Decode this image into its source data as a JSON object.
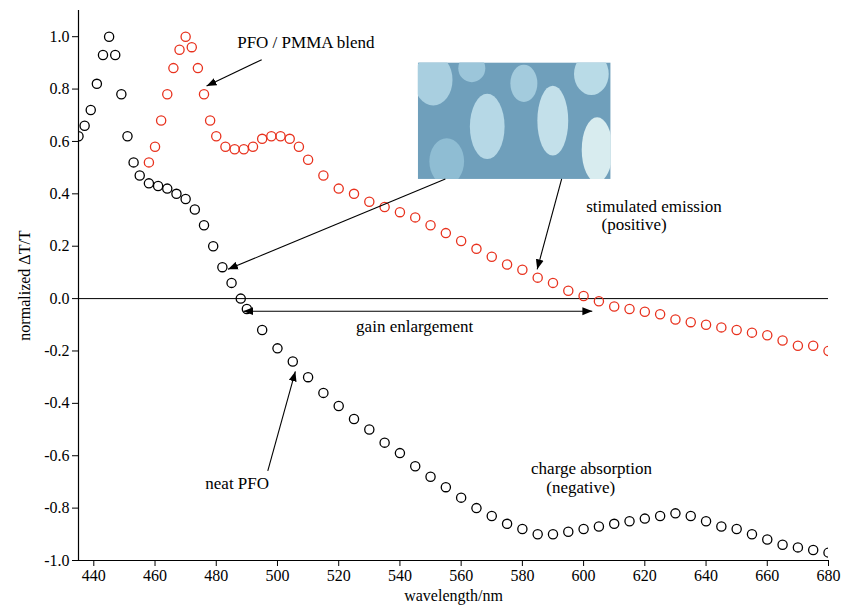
{
  "chart_data": {
    "type": "scatter",
    "x_label": "wavelength/nm",
    "y_label": "normalized ΔT/T",
    "xlim": [
      435,
      680
    ],
    "xticks": [
      440,
      460,
      480,
      500,
      520,
      540,
      560,
      580,
      600,
      620,
      640,
      660,
      680
    ],
    "ylim": [
      -1.0,
      1.1
    ],
    "yticks": [
      {
        "value": -1,
        "label": "-1.0"
      },
      -0.8,
      -0.6,
      -0.4,
      -0.2,
      {
        "value": 0,
        "label": "0.0"
      },
      0.2,
      0.4,
      0.6,
      0.8,
      {
        "value": 1,
        "label": "1.0"
      }
    ],
    "grid": false,
    "series": [
      {
        "name": "neat PFO",
        "color": "#000000",
        "marker": "open circle",
        "x": [
          435,
          437,
          439,
          441,
          443,
          445,
          447,
          449,
          451,
          453,
          455,
          458,
          461,
          464,
          467,
          470,
          473,
          476,
          479,
          482,
          485,
          488,
          490,
          495,
          500,
          505,
          510,
          515,
          520,
          525,
          530,
          535,
          540,
          545,
          550,
          555,
          560,
          565,
          570,
          575,
          580,
          585,
          590,
          595,
          600,
          605,
          610,
          615,
          620,
          625,
          630,
          635,
          640,
          645,
          650,
          655,
          660,
          665,
          670,
          675,
          680
        ],
        "values": [
          0.62,
          0.66,
          0.72,
          0.82,
          0.93,
          1.0,
          0.93,
          0.78,
          0.62,
          0.52,
          0.47,
          0.44,
          0.43,
          0.42,
          0.4,
          0.38,
          0.34,
          0.28,
          0.2,
          0.12,
          0.06,
          0.0,
          -0.04,
          -0.12,
          -0.19,
          -0.24,
          -0.3,
          -0.36,
          -0.41,
          -0.46,
          -0.5,
          -0.55,
          -0.59,
          -0.64,
          -0.68,
          -0.72,
          -0.76,
          -0.8,
          -0.83,
          -0.86,
          -0.88,
          -0.9,
          -0.9,
          -0.89,
          -0.88,
          -0.87,
          -0.86,
          -0.85,
          -0.84,
          -0.83,
          -0.82,
          -0.83,
          -0.85,
          -0.87,
          -0.88,
          -0.9,
          -0.92,
          -0.94,
          -0.95,
          -0.96,
          -0.97
        ]
      },
      {
        "name": "PFO / PMMA blend",
        "color": "#e8321e",
        "marker": "open circle",
        "x": [
          458,
          460,
          462,
          464,
          466,
          468,
          470,
          472,
          474,
          476,
          478,
          480,
          483,
          486,
          489,
          492,
          495,
          498,
          501,
          504,
          507,
          510,
          515,
          520,
          525,
          530,
          535,
          540,
          545,
          550,
          555,
          560,
          565,
          570,
          575,
          580,
          585,
          590,
          595,
          600,
          605,
          610,
          615,
          620,
          625,
          630,
          635,
          640,
          645,
          650,
          655,
          660,
          665,
          670,
          675,
          680
        ],
        "values": [
          0.52,
          0.58,
          0.68,
          0.78,
          0.88,
          0.95,
          1.0,
          0.96,
          0.88,
          0.78,
          0.68,
          0.62,
          0.58,
          0.57,
          0.57,
          0.58,
          0.61,
          0.62,
          0.62,
          0.61,
          0.58,
          0.53,
          0.47,
          0.42,
          0.4,
          0.37,
          0.35,
          0.33,
          0.31,
          0.28,
          0.25,
          0.22,
          0.19,
          0.16,
          0.13,
          0.11,
          0.08,
          0.06,
          0.03,
          0.01,
          -0.01,
          -0.03,
          -0.04,
          -0.05,
          -0.06,
          -0.08,
          -0.09,
          -0.1,
          -0.11,
          -0.12,
          -0.13,
          -0.14,
          -0.16,
          -0.18,
          -0.18,
          -0.2
        ]
      }
    ],
    "annotations": [
      "stimulated emission",
      "(positive)",
      "gain enlargement",
      "charge absorption",
      "(negative)"
    ]
  }
}
